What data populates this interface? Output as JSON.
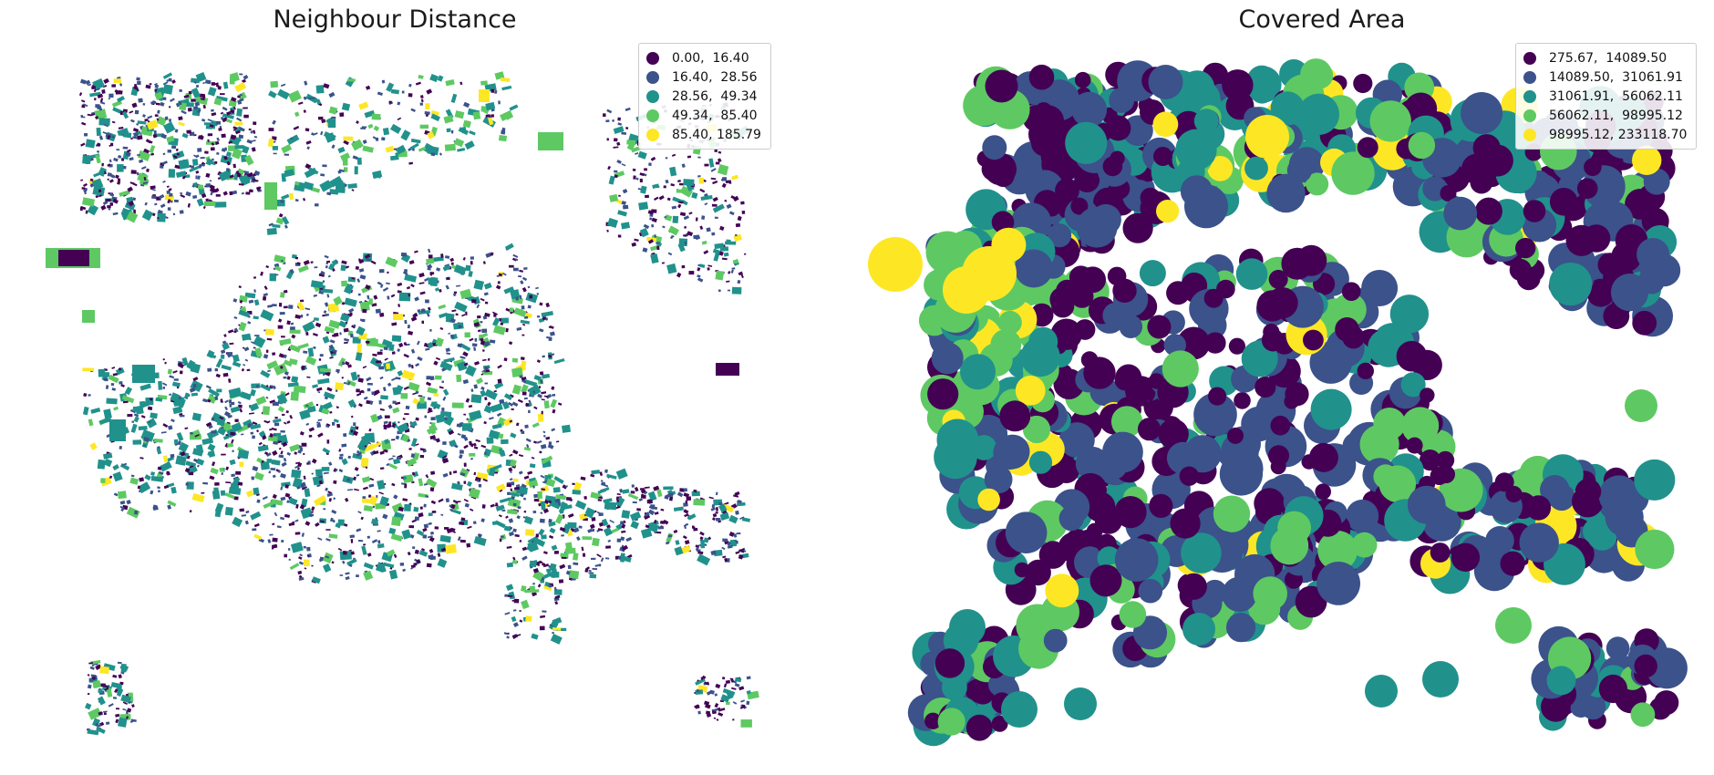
{
  "maps": [
    {
      "title": "Neighbour Distance",
      "legend": [
        {
          "label": "0.00,  16.40",
          "color": "#440154"
        },
        {
          "label": "16.40,  28.56",
          "color": "#3b528b"
        },
        {
          "label": "28.56,  49.34",
          "color": "#21918c"
        },
        {
          "label": "49.34,  85.40",
          "color": "#5ec962"
        },
        {
          "label": "85.40, 185.79",
          "color": "#fde725"
        }
      ]
    },
    {
      "title": "Covered Area",
      "legend": [
        {
          "label": "275.67,  14089.50",
          "color": "#440154"
        },
        {
          "label": "14089.50,  31061.91",
          "color": "#3b528b"
        },
        {
          "label": "31061.91,  56062.11",
          "color": "#21918c"
        },
        {
          "label": "56062.11,  98995.12",
          "color": "#5ec962"
        },
        {
          "label": "98995.12, 233118.70",
          "color": "#fde725"
        }
      ]
    }
  ]
}
